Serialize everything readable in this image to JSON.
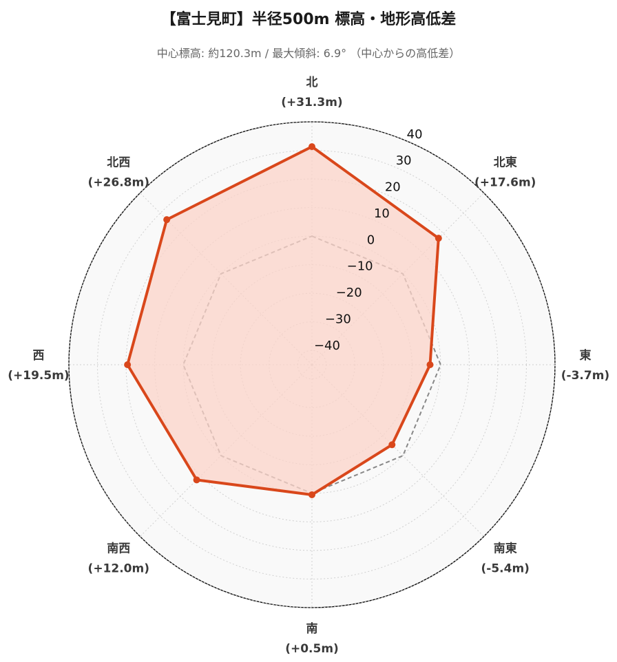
{
  "title": "【富士見町】半径500m 標高・地形高低差",
  "subtitle": "中心標高: 約120.3m / 最大傾斜: 6.9° （中心からの高低差）",
  "chart_data": {
    "type": "radar",
    "categories": [
      "北",
      "北東",
      "東",
      "南東",
      "南",
      "南西",
      "西",
      "北西"
    ],
    "category_labels": [
      "(+31.3m)",
      "(+17.6m)",
      "(-3.7m)",
      "(-5.4m)",
      "(+0.5m)",
      "(+12.0m)",
      "(+19.5m)",
      "(+26.8m)"
    ],
    "series": [
      {
        "values": [
          31.3,
          17.6,
          -3.7,
          -5.4,
          0.5,
          12.0,
          19.5,
          26.8
        ],
        "color": "#d9471b",
        "fill": "#fbd3c8"
      },
      {
        "values": [
          0,
          0,
          0,
          0,
          0,
          0,
          0,
          0
        ],
        "color": "#888888",
        "style": "dashed"
      }
    ],
    "ticks": [
      40,
      30,
      20,
      10,
      0,
      -10,
      -20,
      -30,
      -40
    ],
    "tick_labels": [
      "40",
      "30",
      "20",
      "10",
      "0",
      "−10",
      "−20",
      "−30",
      "−40"
    ],
    "rlim": [
      -45,
      40
    ],
    "grid": true
  }
}
